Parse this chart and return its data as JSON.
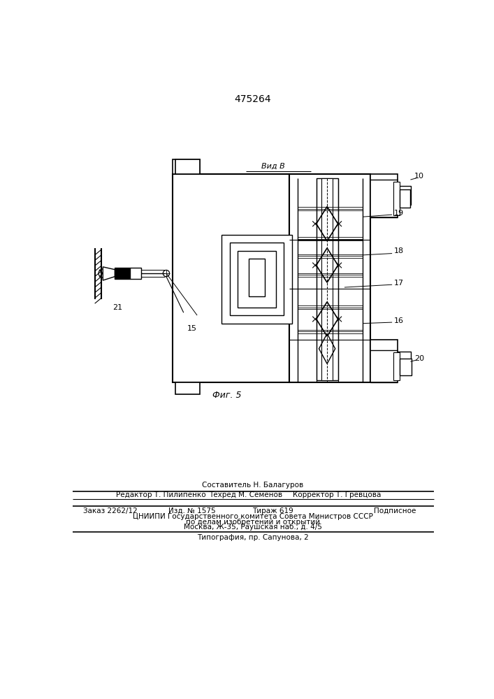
{
  "title_number": "475264",
  "fig_label": "Фиг. 5",
  "view_label": "Вид B",
  "label_10": "10",
  "label_15": "15",
  "label_16": "16",
  "label_17": "17",
  "label_18": "18",
  "label_19": "19",
  "label_20": "20",
  "label_21": "21",
  "footer_line1": "Составитель Н. Балагуров",
  "footer_line2_left": "Редактор Т. Пилипенко",
  "footer_line2_center": "Техред М. Семенов",
  "footer_line2_right": "Корректор Т. Гревцова",
  "footer_line3_1": "Заказ 2262/12",
  "footer_line3_2": "Изд. № 1575",
  "footer_line3_3": "Тираж 619",
  "footer_line3_4": "Подписное",
  "footer_line4": "ЦНИИПИ Государственного комитета Совета Министров СССР",
  "footer_line5": "по делам изобретений и открытий",
  "footer_line6": "Москва, Ж-35, Раушская наб., д. 4/5",
  "footer_typography": "Типография, пр. Сапунова, 2",
  "bg_color": "#ffffff",
  "line_color": "#000000"
}
